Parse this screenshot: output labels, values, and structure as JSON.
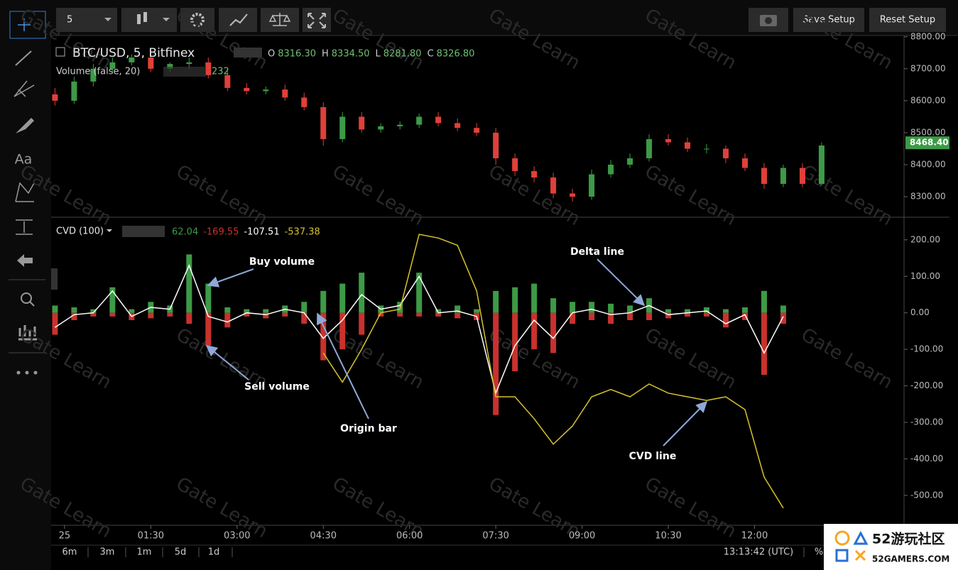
{
  "toolbar": {
    "interval": "5",
    "buttons": [
      "Save Setup",
      "Reset Setup"
    ]
  },
  "left_toolbar": {
    "text_tool": "Aa"
  },
  "chart_data": [
    {
      "type": "candlestick",
      "title": "BTC/USD, 5, Bitfinex",
      "ohlc": [
        {
          "label": "O",
          "value": "8316.30"
        },
        {
          "label": "H",
          "value": "8334.50"
        },
        {
          "label": "L",
          "value": "8281.80"
        },
        {
          "label": "C",
          "value": "8326.80"
        }
      ],
      "study": {
        "name": "Volume (false, 20)",
        "value": "232"
      },
      "up_color": "#3d9a46",
      "down_color": "#e0403a",
      "x": [
        -10,
        10,
        30,
        50,
        70,
        90,
        110,
        130,
        150,
        170,
        190,
        210,
        230,
        250,
        270,
        290,
        310,
        330,
        350,
        370,
        390,
        410,
        430,
        450,
        470,
        490,
        510,
        530,
        550,
        570,
        590,
        610,
        630,
        650,
        670,
        690,
        710,
        730,
        750,
        770,
        790
      ],
      "open": [
        8620,
        8600,
        8660,
        8700,
        8720,
        8735,
        8700,
        8715,
        8720,
        8680,
        8640,
        8630,
        8635,
        8610,
        8580,
        8480,
        8550,
        8510,
        8520,
        8525,
        8550,
        8530,
        8515,
        8500,
        8420,
        8380,
        8360,
        8310,
        8300,
        8370,
        8400,
        8420,
        8480,
        8470,
        8450,
        8450,
        8420,
        8390,
        8340,
        8390,
        8340
      ],
      "high": [
        8640,
        8675,
        8715,
        8735,
        8745,
        8750,
        8720,
        8735,
        8735,
        8700,
        8655,
        8645,
        8650,
        8625,
        8595,
        8565,
        8565,
        8530,
        8535,
        8560,
        8565,
        8545,
        8530,
        8515,
        8435,
        8395,
        8375,
        8325,
        8385,
        8415,
        8435,
        8495,
        8495,
        8485,
        8465,
        8460,
        8435,
        8405,
        8400,
        8405,
        8470
      ],
      "low": [
        8585,
        8590,
        8645,
        8690,
        8710,
        8690,
        8690,
        8700,
        8670,
        8630,
        8620,
        8620,
        8600,
        8570,
        8460,
        8470,
        8500,
        8500,
        8510,
        8515,
        8520,
        8505,
        8490,
        8400,
        8365,
        8345,
        8295,
        8285,
        8290,
        8360,
        8390,
        8410,
        8460,
        8440,
        8435,
        8405,
        8380,
        8325,
        8330,
        8330,
        8335
      ],
      "close": [
        8600,
        8660,
        8700,
        8720,
        8735,
        8700,
        8715,
        8720,
        8680,
        8640,
        8630,
        8635,
        8610,
        8580,
        8480,
        8550,
        8510,
        8520,
        8525,
        8550,
        8530,
        8515,
        8500,
        8420,
        8380,
        8360,
        8310,
        8300,
        8370,
        8400,
        8420,
        8480,
        8470,
        8450,
        8450,
        8420,
        8390,
        8340,
        8390,
        8340,
        8460
      ],
      "last_price": {
        "value": 8468.4,
        "label": "8468.40"
      },
      "xlim": [
        -14,
        876
      ],
      "ylim": [
        8238,
        8804
      ],
      "yticks": [
        {
          "value": 8300,
          "label": "8300.00"
        },
        {
          "value": 8400,
          "label": "8400.00"
        },
        {
          "value": 8500,
          "label": "8500.00"
        },
        {
          "value": 8600,
          "label": "8600.00"
        },
        {
          "value": 8700,
          "label": "8700.00"
        },
        {
          "value": 8800,
          "label": "8800.00"
        }
      ]
    },
    {
      "type": "cvd",
      "title": "CVD (100)",
      "x": [
        -10,
        10,
        30,
        50,
        70,
        90,
        110,
        130,
        150,
        170,
        190,
        210,
        230,
        250,
        270,
        290,
        310,
        330,
        350,
        370,
        390,
        410,
        430,
        450,
        470,
        490,
        510,
        530,
        550,
        570,
        590,
        610,
        630,
        650,
        670,
        690,
        710,
        730,
        750,
        770,
        790
      ],
      "series": [
        {
          "name": "Buy volume",
          "kind": "bar",
          "color": "#3d9a46",
          "legend_value": "62.04",
          "values": [
            20,
            15,
            10,
            70,
            10,
            30,
            20,
            160,
            80,
            15,
            10,
            10,
            20,
            30,
            60,
            80,
            110,
            20,
            30,
            110,
            10,
            20,
            10,
            60,
            70,
            80,
            40,
            30,
            30,
            25,
            20,
            40,
            10,
            10,
            15,
            10,
            15,
            60,
            20,
            null,
            null
          ]
        },
        {
          "name": "Sell volume",
          "kind": "bar",
          "color": "#c8322d",
          "legend_value": "-169.55",
          "values": [
            -60,
            -20,
            -10,
            -10,
            -20,
            -15,
            -10,
            -30,
            -90,
            -40,
            -10,
            -15,
            -10,
            -30,
            -130,
            -100,
            -60,
            -10,
            -10,
            -10,
            -10,
            -15,
            -20,
            -280,
            -160,
            -100,
            -110,
            -30,
            -20,
            -30,
            -20,
            -20,
            -15,
            -10,
            -10,
            -40,
            -20,
            -170,
            -30,
            null,
            null
          ]
        },
        {
          "name": "Delta line",
          "kind": "line",
          "color": "#ffffff",
          "legend_value": "-107.51",
          "values": [
            -40,
            -5,
            0,
            60,
            -10,
            15,
            10,
            130,
            -10,
            -25,
            0,
            -5,
            10,
            0,
            -70,
            -20,
            50,
            10,
            20,
            100,
            0,
            5,
            -10,
            -220,
            -90,
            -20,
            -70,
            0,
            10,
            -5,
            0,
            20,
            -5,
            0,
            5,
            -30,
            -5,
            -110,
            -10,
            null,
            null
          ]
        },
        {
          "name": "CVD line",
          "kind": "line",
          "color": "#d6c22e",
          "legend_value": "-537.38",
          "values": [
            null,
            null,
            null,
            null,
            null,
            null,
            null,
            null,
            null,
            null,
            null,
            null,
            null,
            null,
            -110,
            -190,
            -100,
            0,
            10,
            215,
            205,
            185,
            60,
            -230,
            -230,
            -290,
            -360,
            -310,
            -230,
            -210,
            -230,
            -195,
            -220,
            -230,
            -240,
            -230,
            -265,
            -450,
            -535,
            null,
            null
          ]
        }
      ],
      "annotations": [
        "Origin bar"
      ],
      "grid": false,
      "xlim": [
        -14,
        876
      ],
      "xticks": [
        {
          "value": 0,
          "label": "25"
        },
        {
          "value": 90,
          "label": "01:30"
        },
        {
          "value": 180,
          "label": "03:00"
        },
        {
          "value": 270,
          "label": "04:30"
        },
        {
          "value": 360,
          "label": "06:00"
        },
        {
          "value": 450,
          "label": "07:30"
        },
        {
          "value": 540,
          "label": "09:00"
        },
        {
          "value": 630,
          "label": "10:30"
        },
        {
          "value": 720,
          "label": "12:00"
        }
      ],
      "ylim": [
        -582,
        260
      ],
      "yticks": [
        {
          "value": -500,
          "label": "-500.00"
        },
        {
          "value": -400,
          "label": "-400.00"
        },
        {
          "value": -300,
          "label": "-300.00"
        },
        {
          "value": -200,
          "label": "-200.00"
        },
        {
          "value": -100,
          "label": "-100.00"
        },
        {
          "value": 0,
          "label": "0.00"
        },
        {
          "value": 100,
          "label": "100.00"
        },
        {
          "value": 200,
          "label": "200.00"
        }
      ]
    }
  ],
  "timeframes": [
    "6m",
    "3m",
    "1m",
    "5d",
    "1d"
  ],
  "clock": "13:13:42 (UTC)",
  "percent": "%",
  "watermark": "Gate Learn",
  "logo": {
    "title": "52游玩社区",
    "url": "52GAMERS.COM"
  }
}
